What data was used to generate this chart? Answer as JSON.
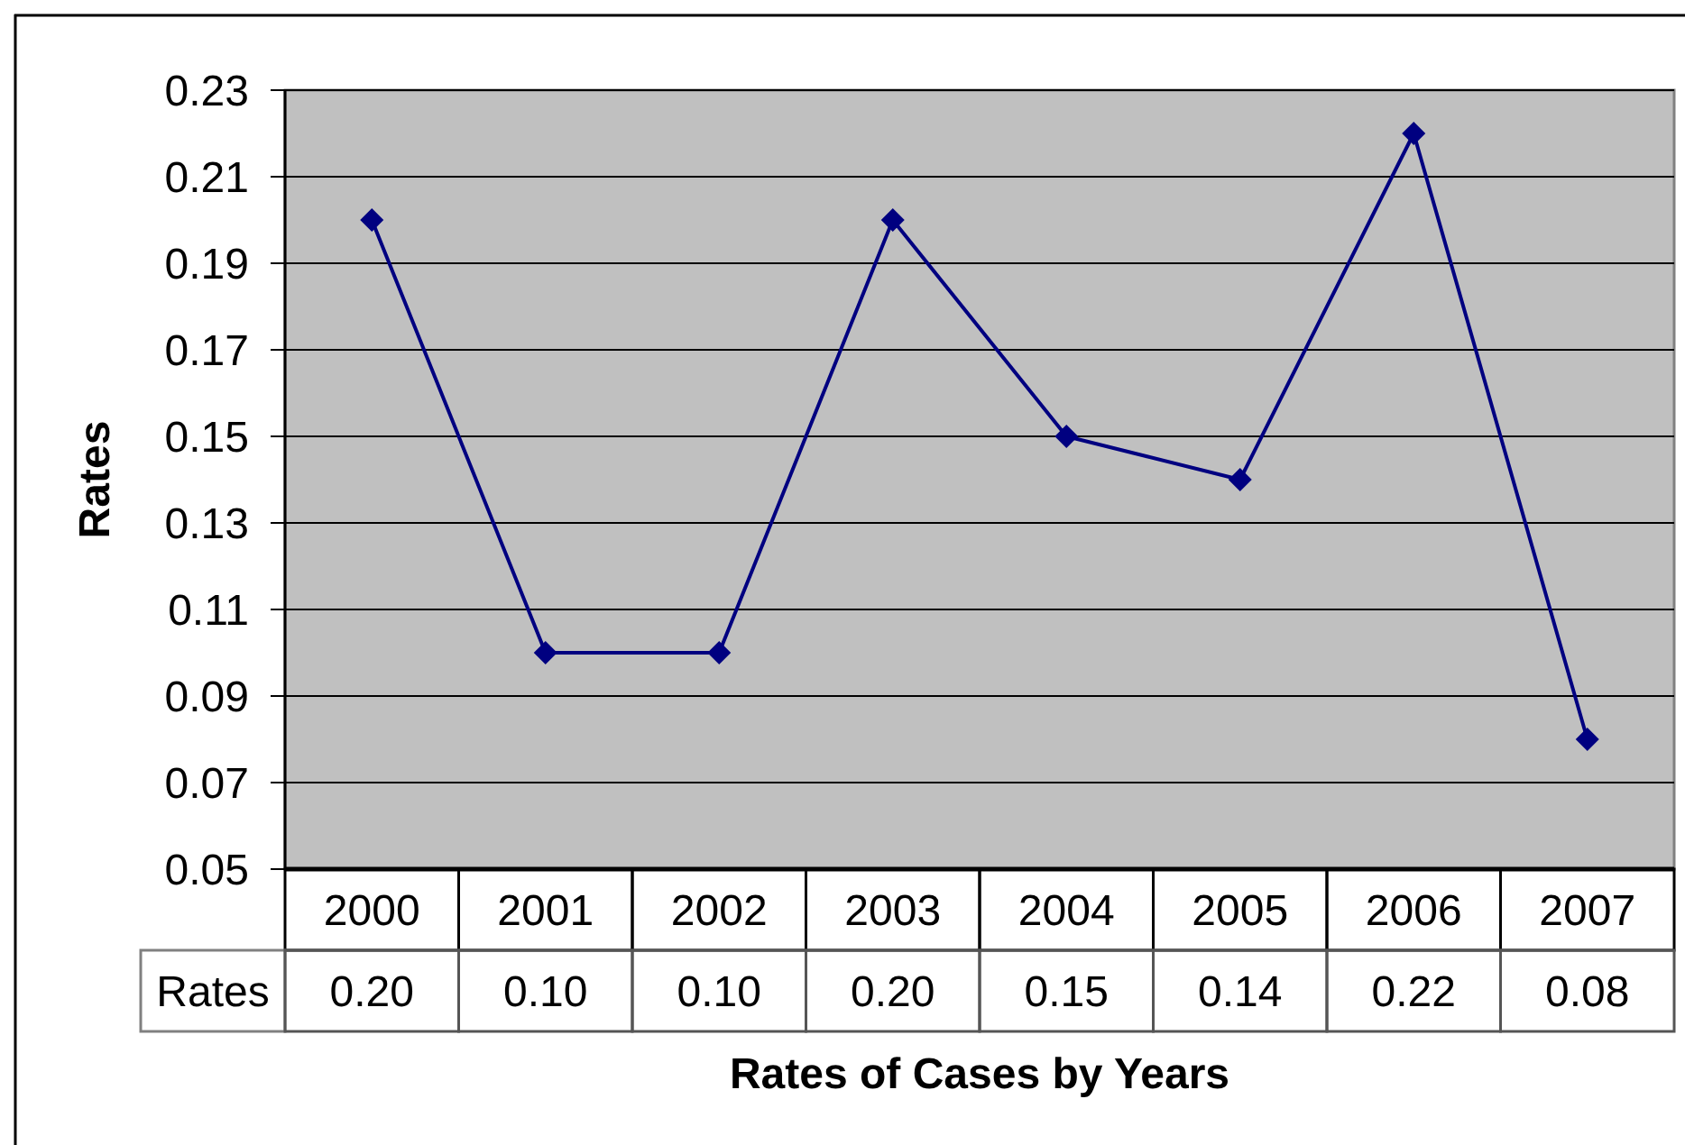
{
  "chart_data": {
    "type": "line",
    "xlabel": "Rates of Cases by Years",
    "ylabel": "Rates",
    "categories": [
      "2000",
      "2001",
      "2002",
      "2003",
      "2004",
      "2005",
      "2006",
      "2007"
    ],
    "series": [
      {
        "name": "Rates",
        "color": "#000080",
        "values": [
          0.2,
          0.1,
          0.1,
          0.2,
          0.15,
          0.14,
          0.22,
          0.08
        ],
        "value_labels": [
          "0.20",
          "0.10",
          "0.10",
          "0.20",
          "0.15",
          "0.14",
          "0.22",
          "0.08"
        ]
      }
    ],
    "ylim": [
      0.05,
      0.23
    ],
    "yticks": [
      0.05,
      0.07,
      0.09,
      0.11,
      0.13,
      0.15,
      0.17,
      0.19,
      0.21,
      0.23
    ],
    "grid": "y",
    "marker": "diamond",
    "line_style": "solid"
  }
}
